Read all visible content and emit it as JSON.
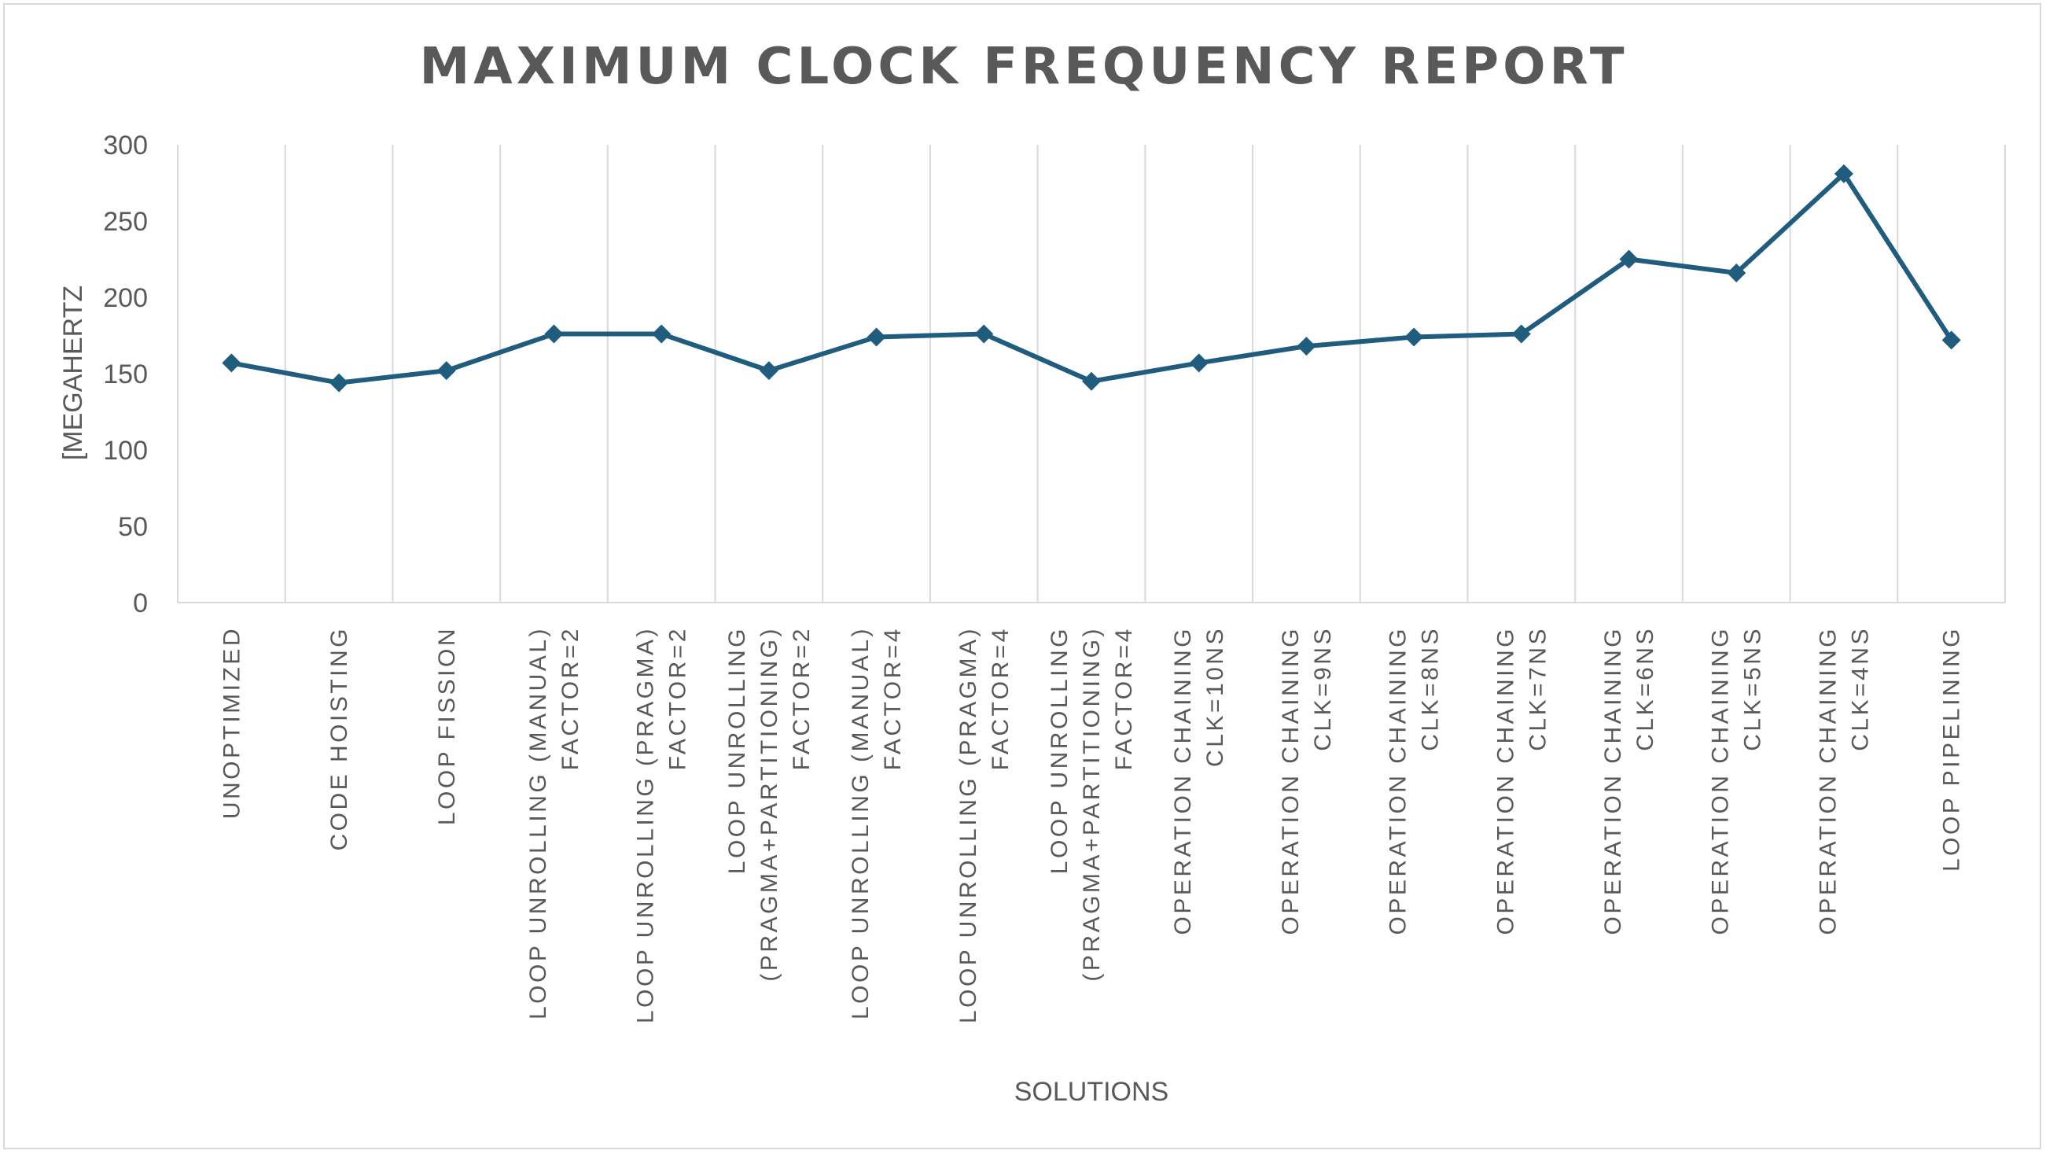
{
  "chart_data": {
    "type": "line",
    "title": "MAXIMUM CLOCK FREQUENCY REPORT",
    "xlabel": "SOLUTIONS",
    "ylabel": "[MEGAHERTZ",
    "ylim": [
      0,
      300
    ],
    "yticks": [
      "0",
      "50",
      "100",
      "150",
      "200",
      "250",
      "300"
    ],
    "grid": "vertical",
    "legend": "none",
    "categories": [
      [
        "UNOPTIMIZED"
      ],
      [
        "CODE HOISTING"
      ],
      [
        "LOOP FISSION"
      ],
      [
        "LOOP UNROLLING (MANUAL)",
        "FACTOR=2"
      ],
      [
        "LOOP UNROLLING (PRAGMA)",
        "FACTOR=2"
      ],
      [
        "LOOP UNROLLING",
        "(PRAGMA+PARTITIONING)",
        "FACTOR=2"
      ],
      [
        "LOOP UNROLLING (MANUAL)",
        "FACTOR=4"
      ],
      [
        "LOOP UNROLLING (PRAGMA)",
        "FACTOR=4"
      ],
      [
        "LOOP UNROLLING",
        "(PRAGMA+PARTITIONING)",
        "FACTOR=4"
      ],
      [
        "OPERATION CHAINING",
        "CLK=10NS"
      ],
      [
        "OPERATION CHAINING",
        "CLK=9NS"
      ],
      [
        "OPERATION CHAINING",
        "CLK=8NS"
      ],
      [
        "OPERATION CHAINING",
        "CLK=7NS"
      ],
      [
        "OPERATION CHAINING",
        "CLK=6NS"
      ],
      [
        "OPERATION CHAINING",
        "CLK=5NS"
      ],
      [
        "OPERATION CHAINING",
        "CLK=4NS"
      ],
      [
        "LOOP PIPELINING"
      ]
    ],
    "series": [
      {
        "values": [
          157,
          144,
          152,
          176,
          176,
          152,
          174,
          176,
          145,
          157,
          168,
          174,
          176,
          225,
          216,
          281,
          172
        ],
        "color": "#1f5c7e",
        "marker": "diamond"
      }
    ],
    "colors": {
      "line": "#1f5c7e",
      "grid": "#d9d9d9",
      "text": "#595959",
      "frame": "#d9d9d9"
    }
  }
}
